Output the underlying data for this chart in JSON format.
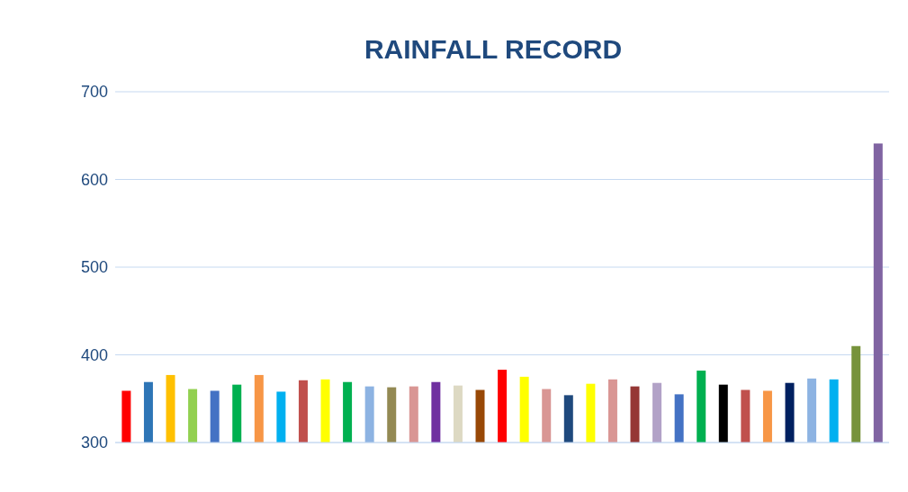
{
  "chart_data": {
    "type": "bar",
    "title": "RAINFALL RECORD",
    "categories": [
      null,
      null,
      null,
      null,
      null,
      null,
      null,
      null,
      null,
      null,
      null,
      null,
      null,
      null,
      null,
      null,
      null,
      null,
      null,
      null,
      null,
      null,
      null,
      null,
      null,
      null,
      null,
      null,
      null,
      null,
      null,
      null,
      null,
      null,
      null
    ],
    "values": [
      359,
      369,
      377,
      361,
      359,
      366,
      377,
      358,
      371,
      372,
      369,
      364,
      363,
      364,
      369,
      365,
      360,
      383,
      375,
      361,
      354,
      367,
      372,
      364,
      368,
      355,
      382,
      366,
      360,
      359,
      368,
      373,
      372,
      410,
      641
    ],
    "colors": [
      "#ff0000",
      "#2e75b6",
      "#ffc000",
      "#92d050",
      "#4472c4",
      "#00b050",
      "#f79646",
      "#00b0f0",
      "#c0504d",
      "#ffff00",
      "#00b050",
      "#8db3e2",
      "#938953",
      "#d99694",
      "#7030a0",
      "#ddd9c3",
      "#984806",
      "#ff0000",
      "#ffff00",
      "#d99694",
      "#1f497d",
      "#ffff00",
      "#d99694",
      "#953735",
      "#b2a2c7",
      "#4472c4",
      "#00b050",
      "#000000",
      "#c0504d",
      "#f79646",
      "#002060",
      "#8db3e2",
      "#00b0f0",
      "#77933c",
      "#8064a2"
    ],
    "ylim": [
      300,
      700
    ],
    "yticks": [
      300,
      400,
      500,
      600,
      700
    ],
    "grid": "y",
    "tick_labels": "y"
  }
}
